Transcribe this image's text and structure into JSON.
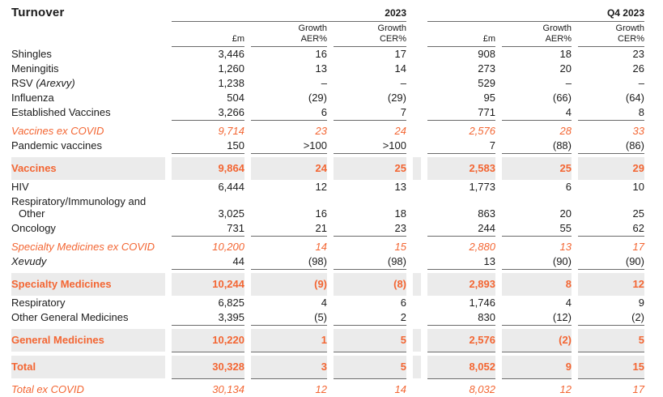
{
  "title": "Turnover",
  "colors": {
    "accent": "#F36633",
    "row_shade": "#EBEBEB",
    "rule_line": "#6B6B6B",
    "text": "#1B1B1B"
  },
  "header": {
    "groups": [
      {
        "label": "2023",
        "subcolumns": [
          "£m",
          "Growth\nAER%",
          "Growth\nCER%"
        ]
      },
      {
        "label": "Q4 2023",
        "subcolumns": [
          "£m",
          "Growth\nAER%",
          "Growth\nCER%"
        ]
      }
    ]
  },
  "rows": [
    {
      "label": "Shingles",
      "style": "normal",
      "values": [
        "3,446",
        "16",
        "17",
        "908",
        "18",
        "23"
      ]
    },
    {
      "label": "Meningitis",
      "style": "normal",
      "values": [
        "1,260",
        "13",
        "14",
        "273",
        "20",
        "26"
      ]
    },
    {
      "label": "RSV ",
      "label_italic": "(Arexvy)",
      "style": "normal",
      "values": [
        "1,238",
        "–",
        "–",
        "529",
        "–",
        "–"
      ]
    },
    {
      "label": "Influenza",
      "style": "normal",
      "values": [
        "504",
        "(29)",
        "(29)",
        "95",
        "(66)",
        "(64)"
      ]
    },
    {
      "label": "Established Vaccines",
      "style": "normal",
      "rule_after": true,
      "values": [
        "3,266",
        "6",
        "7",
        "771",
        "4",
        "8"
      ]
    },
    {
      "label": "Vaccines ex COVID",
      "style": "excovid",
      "values": [
        "9,714",
        "23",
        "24",
        "2,576",
        "28",
        "33"
      ]
    },
    {
      "label": "Pandemic vaccines",
      "style": "normal",
      "rule_after": true,
      "values": [
        "150",
        ">100",
        ">100",
        "7",
        "(88)",
        "(86)"
      ]
    },
    {
      "label": "Vaccines",
      "style": "total",
      "values": [
        "9,864",
        "24",
        "25",
        "2,583",
        "25",
        "29"
      ]
    },
    {
      "label": "HIV",
      "style": "normal",
      "values": [
        "6,444",
        "12",
        "13",
        "1,773",
        "6",
        "10"
      ]
    },
    {
      "label": "Respiratory/Immunology and",
      "label_line2": "Other",
      "style": "normal",
      "values": [
        "3,025",
        "16",
        "18",
        "863",
        "20",
        "25"
      ]
    },
    {
      "label": "Oncology",
      "style": "normal",
      "rule_after": true,
      "values": [
        "731",
        "21",
        "23",
        "244",
        "55",
        "62"
      ]
    },
    {
      "label": "Specialty Medicines ex COVID",
      "style": "excovid",
      "values": [
        "10,200",
        "14",
        "15",
        "2,880",
        "13",
        "17"
      ]
    },
    {
      "label": "Xevudy",
      "style": "normal",
      "label_italic_full": true,
      "rule_after": true,
      "values": [
        "44",
        "(98)",
        "(98)",
        "13",
        "(90)",
        "(90)"
      ]
    },
    {
      "label": "Specialty Medicines",
      "style": "total",
      "values": [
        "10,244",
        "(9)",
        "(8)",
        "2,893",
        "8",
        "12"
      ]
    },
    {
      "label": "Respiratory",
      "style": "normal",
      "values": [
        "6,825",
        "4",
        "6",
        "1,746",
        "4",
        "9"
      ]
    },
    {
      "label": "Other General Medicines",
      "style": "normal",
      "rule_after": true,
      "values": [
        "3,395",
        "(5)",
        "2",
        "830",
        "(12)",
        "(2)"
      ]
    },
    {
      "label": "General Medicines",
      "style": "total",
      "rule_after": true,
      "values": [
        "10,220",
        "1",
        "5",
        "2,576",
        "(2)",
        "5"
      ]
    },
    {
      "label": "Total",
      "style": "total",
      "rule_after": true,
      "values": [
        "30,328",
        "3",
        "5",
        "8,052",
        "9",
        "15"
      ]
    },
    {
      "label": "Total ex COVID",
      "style": "excovid",
      "values": [
        "30,134",
        "12",
        "14",
        "8,032",
        "12",
        "17"
      ]
    }
  ]
}
